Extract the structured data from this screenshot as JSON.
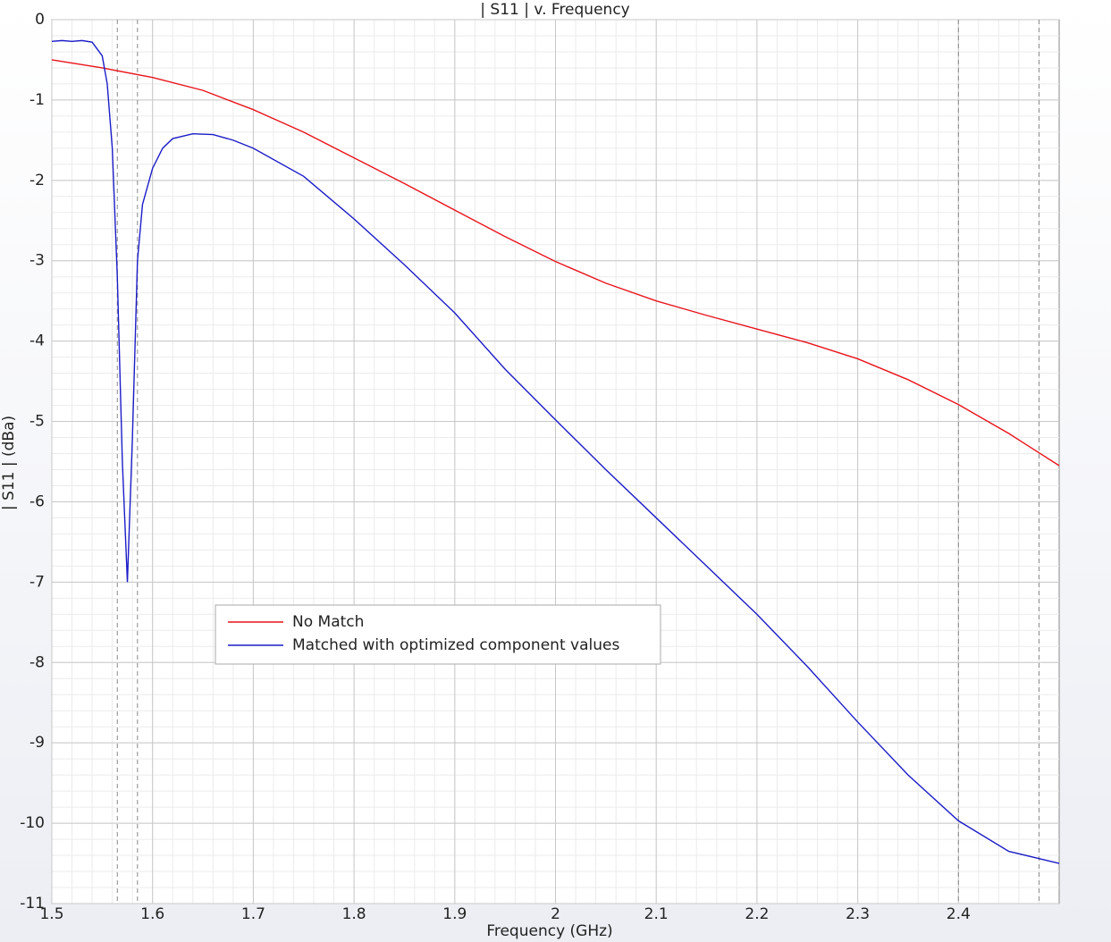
{
  "chart_data": {
    "type": "line",
    "title": "| S11 | v. Frequency",
    "x_label": "Frequency (GHz)",
    "y_label": "| S11 | (dBa)",
    "xlim": [
      1.5,
      2.5
    ],
    "ylim": [
      -11,
      0
    ],
    "xticks": [
      1.5,
      1.6,
      1.7,
      1.8,
      1.9,
      2,
      2.1,
      2.2,
      2.3,
      2.4
    ],
    "yticks": [
      0,
      -1,
      -2,
      -3,
      -4,
      -5,
      -6,
      -7,
      -8,
      -9,
      -10,
      -11
    ],
    "grid": true,
    "minor_grid": true,
    "vlines": [
      1.565,
      1.585,
      2.4,
      2.48
    ],
    "legend": "lower-left",
    "series": [
      {
        "name": "No Match",
        "color": "#e8141c",
        "x": [
          1.5,
          1.55,
          1.6,
          1.65,
          1.7,
          1.75,
          1.8,
          1.85,
          1.9,
          1.95,
          2.0,
          2.05,
          2.1,
          2.15,
          2.2,
          2.25,
          2.3,
          2.35,
          2.4,
          2.45,
          2.5
        ],
        "values": [
          -0.5,
          -0.6,
          -0.72,
          -0.88,
          -1.12,
          -1.4,
          -1.72,
          -2.04,
          -2.37,
          -2.7,
          -3.01,
          -3.28,
          -3.5,
          -3.68,
          -3.85,
          -4.02,
          -4.22,
          -4.48,
          -4.79,
          -5.15,
          -5.55
        ]
      },
      {
        "name": "Matched with optimized component values",
        "color": "#1c1cc8",
        "x": [
          1.5,
          1.51,
          1.52,
          1.53,
          1.54,
          1.55,
          1.555,
          1.56,
          1.565,
          1.57,
          1.575,
          1.58,
          1.585,
          1.59,
          1.6,
          1.61,
          1.62,
          1.64,
          1.66,
          1.68,
          1.7,
          1.75,
          1.8,
          1.85,
          1.9,
          1.95,
          2.0,
          2.05,
          2.1,
          2.15,
          2.2,
          2.25,
          2.3,
          2.35,
          2.4,
          2.45,
          2.5
        ],
        "values": [
          -0.27,
          -0.26,
          -0.27,
          -0.26,
          -0.28,
          -0.45,
          -0.8,
          -1.6,
          -3.2,
          -5.5,
          -7.0,
          -5.2,
          -3.0,
          -2.3,
          -1.85,
          -1.6,
          -1.48,
          -1.42,
          -1.43,
          -1.5,
          -1.6,
          -1.95,
          -2.48,
          -3.05,
          -3.65,
          -4.35,
          -4.98,
          -5.6,
          -6.2,
          -6.8,
          -7.4,
          -8.05,
          -8.74,
          -9.4,
          -9.97,
          -10.35,
          -10.5
        ]
      }
    ]
  }
}
